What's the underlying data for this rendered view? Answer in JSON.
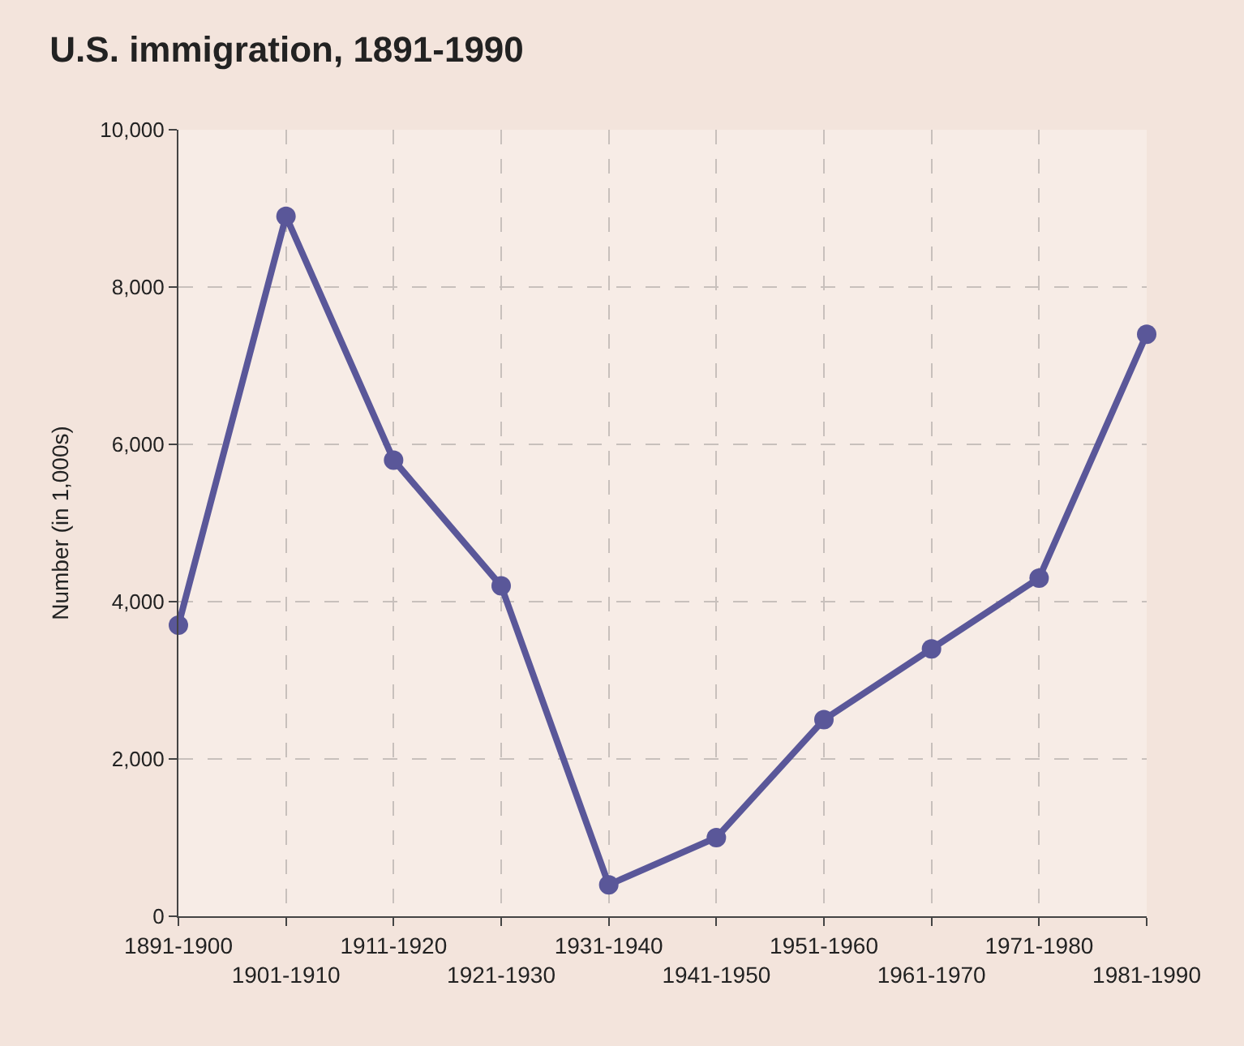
{
  "chart_data": {
    "type": "line",
    "title": "U.S. immigration, 1891-1990",
    "ylabel": "Number (in 1,000s)",
    "categories": [
      "1891-1900",
      "1901-1910",
      "1911-1920",
      "1921-1930",
      "1931-1940",
      "1941-1950",
      "1951-1960",
      "1961-1970",
      "1971-1980",
      "1981-1990"
    ],
    "series": [
      {
        "color": "#5a5799",
        "values": [
          3700,
          8900,
          5800,
          4200,
          400,
          1000,
          2500,
          3400,
          4300,
          7400
        ]
      }
    ],
    "ylim": [
      0,
      10000
    ],
    "yticks": [
      {
        "value": 0,
        "label": "0"
      },
      {
        "value": 2000,
        "label": "2,000"
      },
      {
        "value": 4000,
        "label": "4,000"
      },
      {
        "value": 6000,
        "label": "6,000"
      },
      {
        "value": 8000,
        "label": "8,000"
      },
      {
        "value": 10000,
        "label": "10,000"
      }
    ],
    "grid": true,
    "marker": "circle",
    "line_style": "solid"
  }
}
